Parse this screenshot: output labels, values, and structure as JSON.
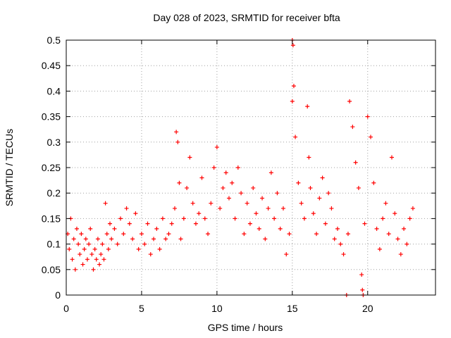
{
  "chart_data": {
    "type": "scatter",
    "title": "Day 028 of 2023, SRMTID for receiver bfta",
    "xlabel": "GPS time / hours",
    "ylabel": "SRMTID / TECUs",
    "xlim": [
      0,
      24.5
    ],
    "ylim": [
      0,
      0.5
    ],
    "xticks": [
      0,
      5,
      10,
      15,
      20
    ],
    "xtick_labels": [
      "0",
      "5",
      "10",
      "15",
      "20"
    ],
    "yticks": [
      0,
      0.05,
      0.1,
      0.15,
      0.2,
      0.25,
      0.3,
      0.35,
      0.4,
      0.45,
      0.5
    ],
    "ytick_labels": [
      "0",
      "0.05",
      "0.1",
      "0.15",
      "0.2",
      "0.25",
      "0.3",
      "0.35",
      "0.4",
      "0.45",
      "0.5"
    ],
    "grid": true,
    "marker": "plus",
    "series_color": "#ff0000",
    "points": [
      [
        0.1,
        0.12
      ],
      [
        0.2,
        0.09
      ],
      [
        0.3,
        0.15
      ],
      [
        0.4,
        0.07
      ],
      [
        0.5,
        0.11
      ],
      [
        0.6,
        0.05
      ],
      [
        0.7,
        0.13
      ],
      [
        0.8,
        0.1
      ],
      [
        0.9,
        0.08
      ],
      [
        1.0,
        0.12
      ],
      [
        1.1,
        0.06
      ],
      [
        1.2,
        0.09
      ],
      [
        1.3,
        0.11
      ],
      [
        1.4,
        0.07
      ],
      [
        1.5,
        0.1
      ],
      [
        1.6,
        0.13
      ],
      [
        1.7,
        0.08
      ],
      [
        1.8,
        0.05
      ],
      [
        1.9,
        0.09
      ],
      [
        2.0,
        0.07
      ],
      [
        2.1,
        0.11
      ],
      [
        2.2,
        0.06
      ],
      [
        2.3,
        0.08
      ],
      [
        2.4,
        0.1
      ],
      [
        2.5,
        0.07
      ],
      [
        2.6,
        0.18
      ],
      [
        2.7,
        0.12
      ],
      [
        2.8,
        0.09
      ],
      [
        2.9,
        0.14
      ],
      [
        3.0,
        0.11
      ],
      [
        3.2,
        0.13
      ],
      [
        3.4,
        0.1
      ],
      [
        3.6,
        0.15
      ],
      [
        3.8,
        0.12
      ],
      [
        4.0,
        0.17
      ],
      [
        4.2,
        0.14
      ],
      [
        4.4,
        0.11
      ],
      [
        4.6,
        0.16
      ],
      [
        4.8,
        0.09
      ],
      [
        5.0,
        0.12
      ],
      [
        5.2,
        0.1
      ],
      [
        5.4,
        0.14
      ],
      [
        5.6,
        0.08
      ],
      [
        5.8,
        0.11
      ],
      [
        6.0,
        0.13
      ],
      [
        6.2,
        0.09
      ],
      [
        6.4,
        0.15
      ],
      [
        6.6,
        0.11
      ],
      [
        6.8,
        0.12
      ],
      [
        7.0,
        0.14
      ],
      [
        7.2,
        0.17
      ],
      [
        7.3,
        0.32
      ],
      [
        7.4,
        0.3
      ],
      [
        7.5,
        0.22
      ],
      [
        7.6,
        0.11
      ],
      [
        7.8,
        0.15
      ],
      [
        8.0,
        0.21
      ],
      [
        8.2,
        0.27
      ],
      [
        8.4,
        0.18
      ],
      [
        8.6,
        0.14
      ],
      [
        8.8,
        0.16
      ],
      [
        9.0,
        0.23
      ],
      [
        9.2,
        0.15
      ],
      [
        9.4,
        0.12
      ],
      [
        9.6,
        0.18
      ],
      [
        9.8,
        0.25
      ],
      [
        10.0,
        0.29
      ],
      [
        10.2,
        0.17
      ],
      [
        10.4,
        0.21
      ],
      [
        10.6,
        0.24
      ],
      [
        10.8,
        0.19
      ],
      [
        11.0,
        0.22
      ],
      [
        11.2,
        0.15
      ],
      [
        11.4,
        0.25
      ],
      [
        11.6,
        0.2
      ],
      [
        11.8,
        0.12
      ],
      [
        12.0,
        0.18
      ],
      [
        12.2,
        0.14
      ],
      [
        12.4,
        0.21
      ],
      [
        12.6,
        0.16
      ],
      [
        12.8,
        0.13
      ],
      [
        13.0,
        0.19
      ],
      [
        13.2,
        0.11
      ],
      [
        13.4,
        0.17
      ],
      [
        13.6,
        0.24
      ],
      [
        13.8,
        0.15
      ],
      [
        14.0,
        0.2
      ],
      [
        14.2,
        0.13
      ],
      [
        14.4,
        0.17
      ],
      [
        14.6,
        0.08
      ],
      [
        14.8,
        0.12
      ],
      [
        15.0,
        0.5
      ],
      [
        15.05,
        0.49
      ],
      [
        15.1,
        0.41
      ],
      [
        15.0,
        0.38
      ],
      [
        15.2,
        0.31
      ],
      [
        15.4,
        0.22
      ],
      [
        15.6,
        0.18
      ],
      [
        15.8,
        0.15
      ],
      [
        16.0,
        0.37
      ],
      [
        16.1,
        0.27
      ],
      [
        16.2,
        0.21
      ],
      [
        16.4,
        0.16
      ],
      [
        16.6,
        0.12
      ],
      [
        16.8,
        0.19
      ],
      [
        17.0,
        0.23
      ],
      [
        17.2,
        0.14
      ],
      [
        17.4,
        0.2
      ],
      [
        17.6,
        0.17
      ],
      [
        17.8,
        0.11
      ],
      [
        18.0,
        0.13
      ],
      [
        18.2,
        0.1
      ],
      [
        18.4,
        0.08
      ],
      [
        18.6,
        0.0
      ],
      [
        18.7,
        0.12
      ],
      [
        18.8,
        0.38
      ],
      [
        19.0,
        0.33
      ],
      [
        19.2,
        0.26
      ],
      [
        19.4,
        0.21
      ],
      [
        19.6,
        0.04
      ],
      [
        19.65,
        0.01
      ],
      [
        19.7,
        0.0
      ],
      [
        19.8,
        0.14
      ],
      [
        20.0,
        0.35
      ],
      [
        20.2,
        0.31
      ],
      [
        20.4,
        0.22
      ],
      [
        20.6,
        0.13
      ],
      [
        20.8,
        0.09
      ],
      [
        21.0,
        0.15
      ],
      [
        21.2,
        0.18
      ],
      [
        21.4,
        0.12
      ],
      [
        21.6,
        0.27
      ],
      [
        21.8,
        0.16
      ],
      [
        22.0,
        0.11
      ],
      [
        22.2,
        0.08
      ],
      [
        22.4,
        0.13
      ],
      [
        22.6,
        0.1
      ],
      [
        22.8,
        0.15
      ],
      [
        23.0,
        0.17
      ]
    ]
  }
}
